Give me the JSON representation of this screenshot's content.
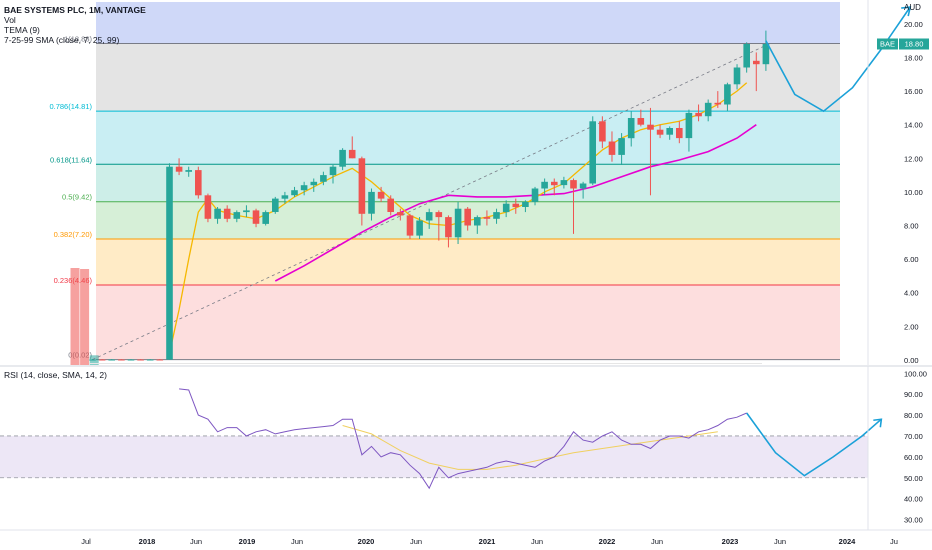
{
  "header": {
    "title": "BAE SYSTEMS PLC, 1M, VANTAGE",
    "vol_label": "Vol",
    "tema_label": "TEMA (9)",
    "sma_label": "7-25-99 SMA (close, 7, 25, 99)"
  },
  "price_axis": {
    "currency": "AUD",
    "ticks": [
      "20.00",
      "18.00",
      "16.00",
      "14.00",
      "12.00",
      "10.00",
      "8.00",
      "6.00",
      "4.00",
      "2.00",
      "0.00"
    ],
    "ticker_badge": "BAE",
    "last_price": "18.80"
  },
  "rsi_panel": {
    "label": "RSI (14, close, SMA, 14, 2)",
    "ticks": [
      "100.00",
      "90.00",
      "80.00",
      "70.00",
      "60.00",
      "50.00",
      "40.00",
      "30.00"
    ]
  },
  "time_axis": {
    "labels": [
      "Jul",
      "2018",
      "Jun",
      "2019",
      "Jun",
      "2020",
      "Jun",
      "2021",
      "Jun",
      "2022",
      "Jun",
      "2023",
      "Jun",
      "2024",
      "Ju"
    ]
  },
  "colors": {
    "up": "#26a69a",
    "down": "#ef5350",
    "tema": "#f5b800",
    "sma": "#e600d0",
    "projection": "#1ba1d8",
    "rsi_line": "#7e57c2",
    "rsi_ma": "#f0d060",
    "rsi_band": "#ede7f6"
  },
  "chart_data": {
    "type": "candlestick",
    "title": "BAE SYSTEMS PLC, 1M, VANTAGE",
    "price_range": [
      -0.3,
      21.3
    ],
    "fib_levels": [
      {
        "ratio": "1",
        "value": 18.83,
        "label": "1(18.83)",
        "color": "#787b86"
      },
      {
        "ratio": "0.786",
        "value": 14.81,
        "label": "0.786(14.81)",
        "color": "#00bcd4"
      },
      {
        "ratio": "0.618",
        "value": 11.64,
        "label": "0.618(11.64)",
        "color": "#009688"
      },
      {
        "ratio": "0.5",
        "value": 9.42,
        "label": "0.5(9.42)",
        "color": "#4caf50"
      },
      {
        "ratio": "0.382",
        "value": 7.2,
        "label": "0.382(7.20)",
        "color": "#ff9800"
      },
      {
        "ratio": "0.236",
        "value": 4.46,
        "label": "0.236(4.46)",
        "color": "#f23645"
      },
      {
        "ratio": "0",
        "value": 0.02,
        "label": "0(0.02)",
        "color": "#787b86"
      }
    ],
    "fib_zone_colors": [
      "#cfd8f8",
      "#e4e4e4",
      "#c9eef3",
      "#cdeee8",
      "#d6efd7",
      "#ffebc6",
      "#fddede"
    ],
    "candles": [
      {
        "t": "2017-11",
        "o": 0.02,
        "h": 0.05,
        "l": 0.01,
        "c": 0.03
      },
      {
        "t": "2017-12",
        "o": 0.03,
        "h": 0.05,
        "l": 0.01,
        "c": 0.02
      },
      {
        "t": "2018-01",
        "o": 0.02,
        "h": 0.05,
        "l": 0.01,
        "c": 0.03
      },
      {
        "t": "2018-02",
        "o": 0.03,
        "h": 0.05,
        "l": 0.01,
        "c": 0.02
      },
      {
        "t": "2018-03",
        "o": 0.02,
        "h": 0.05,
        "l": 0.01,
        "c": 0.03
      },
      {
        "t": "2018-04",
        "o": 0.03,
        "h": 0.05,
        "l": 0.01,
        "c": 0.02
      },
      {
        "t": "2018-05",
        "o": 0.02,
        "h": 0.05,
        "l": 0.01,
        "c": 0.03
      },
      {
        "t": "2018-06",
        "o": 0.03,
        "h": 0.05,
        "l": 0.01,
        "c": 0.02
      },
      {
        "t": "2018-07",
        "o": 0.02,
        "h": 11.7,
        "l": 0.01,
        "c": 11.5
      },
      {
        "t": "2018-08",
        "o": 11.5,
        "h": 12.0,
        "l": 11.0,
        "c": 11.2
      },
      {
        "t": "2018-09",
        "o": 11.2,
        "h": 11.5,
        "l": 10.9,
        "c": 11.3
      },
      {
        "t": "2018-10",
        "o": 11.3,
        "h": 11.5,
        "l": 9.6,
        "c": 9.8
      },
      {
        "t": "2018-11",
        "o": 9.8,
        "h": 9.9,
        "l": 8.2,
        "c": 8.4
      },
      {
        "t": "2018-12",
        "o": 8.4,
        "h": 9.1,
        "l": 8.1,
        "c": 9.0
      },
      {
        "t": "2019-01",
        "o": 9.0,
        "h": 9.2,
        "l": 8.2,
        "c": 8.4
      },
      {
        "t": "2019-02",
        "o": 8.4,
        "h": 8.9,
        "l": 8.2,
        "c": 8.8
      },
      {
        "t": "2019-03",
        "o": 8.8,
        "h": 9.2,
        "l": 8.5,
        "c": 8.9
      },
      {
        "t": "2019-04",
        "o": 8.9,
        "h": 9.0,
        "l": 7.9,
        "c": 8.1
      },
      {
        "t": "2019-05",
        "o": 8.1,
        "h": 8.9,
        "l": 8.0,
        "c": 8.8
      },
      {
        "t": "2019-06",
        "o": 8.8,
        "h": 9.7,
        "l": 8.7,
        "c": 9.6
      },
      {
        "t": "2019-07",
        "o": 9.6,
        "h": 10.0,
        "l": 9.3,
        "c": 9.8
      },
      {
        "t": "2019-08",
        "o": 9.8,
        "h": 10.3,
        "l": 9.7,
        "c": 10.1
      },
      {
        "t": "2019-09",
        "o": 10.1,
        "h": 10.6,
        "l": 9.8,
        "c": 10.4
      },
      {
        "t": "2019-10",
        "o": 10.4,
        "h": 10.8,
        "l": 10.0,
        "c": 10.6
      },
      {
        "t": "2019-11",
        "o": 10.6,
        "h": 11.2,
        "l": 10.4,
        "c": 11.0
      },
      {
        "t": "2019-12",
        "o": 11.0,
        "h": 11.6,
        "l": 10.5,
        "c": 11.5
      },
      {
        "t": "2020-01",
        "o": 11.5,
        "h": 12.6,
        "l": 11.3,
        "c": 12.5
      },
      {
        "t": "2020-02",
        "o": 12.5,
        "h": 13.3,
        "l": 12.0,
        "c": 12.0
      },
      {
        "t": "2020-03",
        "o": 12.0,
        "h": 12.1,
        "l": 8.0,
        "c": 8.7
      },
      {
        "t": "2020-04",
        "o": 8.7,
        "h": 10.2,
        "l": 8.3,
        "c": 10.0
      },
      {
        "t": "2020-05",
        "o": 10.0,
        "h": 10.3,
        "l": 9.4,
        "c": 9.6
      },
      {
        "t": "2020-06",
        "o": 9.6,
        "h": 9.8,
        "l": 8.6,
        "c": 8.8
      },
      {
        "t": "2020-07",
        "o": 8.8,
        "h": 9.0,
        "l": 8.3,
        "c": 8.6
      },
      {
        "t": "2020-08",
        "o": 8.6,
        "h": 8.7,
        "l": 7.2,
        "c": 7.4
      },
      {
        "t": "2020-09",
        "o": 7.4,
        "h": 8.5,
        "l": 7.2,
        "c": 8.3
      },
      {
        "t": "2020-10",
        "o": 8.3,
        "h": 9.0,
        "l": 7.8,
        "c": 8.8
      },
      {
        "t": "2020-11",
        "o": 8.8,
        "h": 8.9,
        "l": 7.1,
        "c": 8.5
      },
      {
        "t": "2020-12",
        "o": 8.5,
        "h": 8.6,
        "l": 6.7,
        "c": 7.3
      },
      {
        "t": "2021-01",
        "o": 7.3,
        "h": 9.4,
        "l": 6.9,
        "c": 9.0
      },
      {
        "t": "2021-02",
        "o": 9.0,
        "h": 9.1,
        "l": 7.7,
        "c": 8.0
      },
      {
        "t": "2021-03",
        "o": 8.0,
        "h": 8.6,
        "l": 7.5,
        "c": 8.5
      },
      {
        "t": "2021-04",
        "o": 8.5,
        "h": 8.9,
        "l": 8.0,
        "c": 8.4
      },
      {
        "t": "2021-05",
        "o": 8.4,
        "h": 9.0,
        "l": 8.1,
        "c": 8.8
      },
      {
        "t": "2021-06",
        "o": 8.8,
        "h": 9.5,
        "l": 8.5,
        "c": 9.3
      },
      {
        "t": "2021-07",
        "o": 9.3,
        "h": 9.6,
        "l": 8.7,
        "c": 9.1
      },
      {
        "t": "2021-08",
        "o": 9.1,
        "h": 9.5,
        "l": 8.8,
        "c": 9.4
      },
      {
        "t": "2021-09",
        "o": 9.4,
        "h": 10.3,
        "l": 9.2,
        "c": 10.2
      },
      {
        "t": "2021-10",
        "o": 10.2,
        "h": 10.8,
        "l": 9.8,
        "c": 10.6
      },
      {
        "t": "2021-11",
        "o": 10.6,
        "h": 10.8,
        "l": 9.8,
        "c": 10.4
      },
      {
        "t": "2021-12",
        "o": 10.4,
        "h": 10.9,
        "l": 10.2,
        "c": 10.7
      },
      {
        "t": "2022-01",
        "o": 10.7,
        "h": 10.8,
        "l": 7.5,
        "c": 10.2
      },
      {
        "t": "2022-02",
        "o": 10.2,
        "h": 10.6,
        "l": 9.6,
        "c": 10.5
      },
      {
        "t": "2022-03",
        "o": 10.5,
        "h": 14.5,
        "l": 10.4,
        "c": 14.2
      },
      {
        "t": "2022-04",
        "o": 14.2,
        "h": 14.5,
        "l": 12.6,
        "c": 13.0
      },
      {
        "t": "2022-05",
        "o": 13.0,
        "h": 13.6,
        "l": 11.8,
        "c": 12.2
      },
      {
        "t": "2022-06",
        "o": 12.2,
        "h": 13.5,
        "l": 11.6,
        "c": 13.2
      },
      {
        "t": "2022-07",
        "o": 13.2,
        "h": 14.8,
        "l": 12.7,
        "c": 14.4
      },
      {
        "t": "2022-08",
        "o": 14.4,
        "h": 14.9,
        "l": 13.9,
        "c": 14.0
      },
      {
        "t": "2022-09",
        "o": 14.0,
        "h": 15.0,
        "l": 9.8,
        "c": 13.7
      },
      {
        "t": "2022-10",
        "o": 13.7,
        "h": 14.0,
        "l": 13.2,
        "c": 13.4
      },
      {
        "t": "2022-11",
        "o": 13.4,
        "h": 13.9,
        "l": 13.1,
        "c": 13.8
      },
      {
        "t": "2022-12",
        "o": 13.8,
        "h": 14.2,
        "l": 12.9,
        "c": 13.2
      },
      {
        "t": "2023-01",
        "o": 13.2,
        "h": 14.9,
        "l": 12.4,
        "c": 14.7
      },
      {
        "t": "2023-02",
        "o": 14.7,
        "h": 15.2,
        "l": 14.2,
        "c": 14.5
      },
      {
        "t": "2023-03",
        "o": 14.5,
        "h": 15.5,
        "l": 14.2,
        "c": 15.3
      },
      {
        "t": "2023-04",
        "o": 15.3,
        "h": 16.0,
        "l": 15.0,
        "c": 15.2
      },
      {
        "t": "2023-05",
        "o": 15.2,
        "h": 16.5,
        "l": 14.8,
        "c": 16.4
      },
      {
        "t": "2023-06",
        "o": 16.4,
        "h": 17.6,
        "l": 16.1,
        "c": 17.4
      },
      {
        "t": "2023-07",
        "o": 17.4,
        "h": 18.9,
        "l": 17.1,
        "c": 18.8
      },
      {
        "t": "2023-08",
        "o": 17.8,
        "h": 18.3,
        "l": 16.0,
        "c": 17.6
      },
      {
        "t": "2023-09",
        "o": 17.6,
        "h": 19.6,
        "l": 17.2,
        "c": 18.8
      }
    ],
    "volume": [
      {
        "t": "2017-11",
        "v": 100,
        "dir": "down"
      },
      {
        "t": "2017-12",
        "v": 99,
        "dir": "down"
      },
      {
        "t": "2018-01",
        "v": 10,
        "dir": "up"
      }
    ],
    "tema": [
      [
        "2018-07",
        0.4
      ],
      [
        "2018-08",
        3
      ],
      [
        "2018-09",
        6
      ],
      [
        "2018-10",
        8.8
      ],
      [
        "2018-11",
        9.6
      ],
      [
        "2018-12",
        8.9
      ],
      [
        "2019-02",
        8.6
      ],
      [
        "2019-04",
        8.4
      ],
      [
        "2019-06",
        8.9
      ],
      [
        "2019-08",
        9.7
      ],
      [
        "2019-10",
        10.3
      ],
      [
        "2019-12",
        10.9
      ],
      [
        "2020-02",
        11.4
      ],
      [
        "2020-04",
        10.6
      ],
      [
        "2020-06",
        9.6
      ],
      [
        "2020-08",
        8.6
      ],
      [
        "2020-10",
        8.1
      ],
      [
        "2020-12",
        8.0
      ],
      [
        "2021-02",
        8.3
      ],
      [
        "2021-04",
        8.5
      ],
      [
        "2021-06",
        8.8
      ],
      [
        "2021-08",
        9.3
      ],
      [
        "2021-10",
        10.0
      ],
      [
        "2021-12",
        10.5
      ],
      [
        "2022-02",
        11.5
      ],
      [
        "2022-04",
        12.5
      ],
      [
        "2022-06",
        13.2
      ],
      [
        "2022-08",
        13.7
      ],
      [
        "2022-10",
        14.0
      ],
      [
        "2022-12",
        14.2
      ],
      [
        "2023-02",
        14.6
      ],
      [
        "2023-04",
        15.2
      ],
      [
        "2023-06",
        16.0
      ],
      [
        "2023-07",
        16.5
      ]
    ],
    "sma": [
      [
        "2019-06",
        4.7
      ],
      [
        "2019-09",
        5.6
      ],
      [
        "2019-12",
        6.6
      ],
      [
        "2020-03",
        7.6
      ],
      [
        "2020-06",
        8.5
      ],
      [
        "2020-09",
        9.3
      ],
      [
        "2020-12",
        9.8
      ],
      [
        "2021-03",
        9.7
      ],
      [
        "2021-06",
        9.7
      ],
      [
        "2021-09",
        9.8
      ],
      [
        "2021-12",
        9.9
      ],
      [
        "2022-03",
        10.3
      ],
      [
        "2022-06",
        10.9
      ],
      [
        "2022-09",
        11.5
      ],
      [
        "2022-12",
        11.9
      ],
      [
        "2023-03",
        12.4
      ],
      [
        "2023-06",
        13.2
      ],
      [
        "2023-08",
        14.0
      ]
    ],
    "trend_line": [
      [
        "2017-11",
        0.02
      ],
      [
        "2023-09",
        18.83
      ]
    ],
    "projection": [
      [
        "2023-09",
        19.0
      ],
      [
        "2023-12",
        15.8
      ],
      [
        "2024-03",
        14.8
      ],
      [
        "2024-06",
        16.2
      ],
      [
        "2024-09",
        18.5
      ],
      [
        "2024-12",
        21.0
      ]
    ],
    "rsi": [
      [
        "2018-08",
        92.5
      ],
      [
        "2018-09",
        92
      ],
      [
        "2018-10",
        80
      ],
      [
        "2018-11",
        78
      ],
      [
        "2018-12",
        72
      ],
      [
        "2019-01",
        74
      ],
      [
        "2019-02",
        74
      ],
      [
        "2019-03",
        70
      ],
      [
        "2019-04",
        72
      ],
      [
        "2019-05",
        73
      ],
      [
        "2019-06",
        71
      ],
      [
        "2019-07",
        72
      ],
      [
        "2019-08",
        73
      ],
      [
        "2019-09",
        73.5
      ],
      [
        "2019-10",
        74
      ],
      [
        "2019-11",
        74.5
      ],
      [
        "2019-12",
        75
      ],
      [
        "2020-01",
        78
      ],
      [
        "2020-02",
        78
      ],
      [
        "2020-03",
        61
      ],
      [
        "2020-04",
        65
      ],
      [
        "2020-05",
        60
      ],
      [
        "2020-06",
        62
      ],
      [
        "2020-07",
        61
      ],
      [
        "2020-08",
        56
      ],
      [
        "2020-09",
        52
      ],
      [
        "2020-10",
        45
      ],
      [
        "2020-11",
        55
      ],
      [
        "2020-12",
        50
      ],
      [
        "2021-01",
        52
      ],
      [
        "2021-02",
        53
      ],
      [
        "2021-03",
        54
      ],
      [
        "2021-04",
        55
      ],
      [
        "2021-05",
        57
      ],
      [
        "2021-06",
        58
      ],
      [
        "2021-07",
        57
      ],
      [
        "2021-08",
        56
      ],
      [
        "2021-09",
        55
      ],
      [
        "2021-10",
        58
      ],
      [
        "2021-11",
        60
      ],
      [
        "2021-12",
        65
      ],
      [
        "2022-01",
        72
      ],
      [
        "2022-02",
        68
      ],
      [
        "2022-03",
        67
      ],
      [
        "2022-04",
        70
      ],
      [
        "2022-05",
        72
      ],
      [
        "2022-06",
        68
      ],
      [
        "2022-07",
        66
      ],
      [
        "2022-08",
        66
      ],
      [
        "2022-09",
        64
      ],
      [
        "2022-10",
        68
      ],
      [
        "2022-11",
        70
      ],
      [
        "2022-12",
        70
      ],
      [
        "2023-01",
        69
      ],
      [
        "2023-02",
        72
      ],
      [
        "2023-03",
        73
      ],
      [
        "2023-04",
        75
      ],
      [
        "2023-05",
        78
      ],
      [
        "2023-06",
        79
      ],
      [
        "2023-07",
        81
      ]
    ],
    "rsi_ma": [
      [
        "2020-01",
        75
      ],
      [
        "2020-04",
        71
      ],
      [
        "2020-07",
        63
      ],
      [
        "2020-10",
        57
      ],
      [
        "2021-01",
        54
      ],
      [
        "2021-04",
        54
      ],
      [
        "2021-07",
        56
      ],
      [
        "2021-10",
        59
      ],
      [
        "2022-01",
        62
      ],
      [
        "2022-04",
        64
      ],
      [
        "2022-07",
        66
      ],
      [
        "2022-10",
        68
      ],
      [
        "2023-01",
        70
      ],
      [
        "2023-04",
        72
      ]
    ],
    "rsi_projection": [
      [
        "2023-07",
        81
      ],
      [
        "2023-10",
        62
      ],
      [
        "2024-01",
        51
      ],
      [
        "2024-04",
        60
      ],
      [
        "2024-07",
        70
      ],
      [
        "2024-09",
        78
      ]
    ],
    "rsi_range": [
      25,
      103
    ],
    "rsi_band": [
      50,
      70
    ],
    "rsi_guides": [
      70,
      50
    ]
  }
}
